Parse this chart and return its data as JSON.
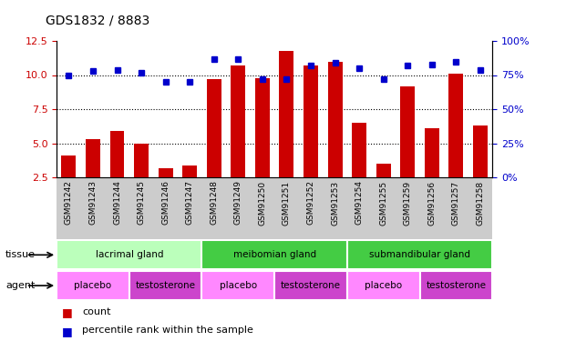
{
  "title": "GDS1832 / 8883",
  "samples": [
    "GSM91242",
    "GSM91243",
    "GSM91244",
    "GSM91245",
    "GSM91246",
    "GSM91247",
    "GSM91248",
    "GSM91249",
    "GSM91250",
    "GSM91251",
    "GSM91252",
    "GSM91253",
    "GSM91254",
    "GSM91255",
    "GSM91259",
    "GSM91256",
    "GSM91257",
    "GSM91258"
  ],
  "bar_values": [
    4.1,
    5.3,
    5.9,
    5.0,
    3.2,
    3.4,
    9.7,
    10.7,
    9.8,
    11.8,
    10.7,
    11.0,
    6.5,
    3.5,
    9.2,
    6.1,
    10.1,
    6.3
  ],
  "dot_values_pct": [
    75,
    78,
    79,
    77,
    70,
    70,
    87,
    87,
    72,
    72,
    82,
    84,
    80,
    72,
    82,
    83,
    85,
    79
  ],
  "ylim_left": [
    2.5,
    12.5
  ],
  "ylim_right": [
    0,
    100
  ],
  "yticks_left": [
    2.5,
    5.0,
    7.5,
    10.0,
    12.5
  ],
  "yticks_right": [
    0,
    25,
    50,
    75,
    100
  ],
  "bar_color": "#cc0000",
  "dot_color": "#0000cc",
  "tissue_data": [
    {
      "label": "lacrimal gland",
      "start": 0,
      "end": 6,
      "color": "#bbffbb"
    },
    {
      "label": "meibomian gland",
      "start": 6,
      "end": 12,
      "color": "#44cc44"
    },
    {
      "label": "submandibular gland",
      "start": 12,
      "end": 18,
      "color": "#44cc44"
    }
  ],
  "agent_data": [
    {
      "label": "placebo",
      "start": 0,
      "end": 3,
      "color": "#ff88ff"
    },
    {
      "label": "testosterone",
      "start": 3,
      "end": 6,
      "color": "#cc44cc"
    },
    {
      "label": "placebo",
      "start": 6,
      "end": 9,
      "color": "#ff88ff"
    },
    {
      "label": "testosterone",
      "start": 9,
      "end": 12,
      "color": "#cc44cc"
    },
    {
      "label": "placebo",
      "start": 12,
      "end": 15,
      "color": "#ff88ff"
    },
    {
      "label": "testosterone",
      "start": 15,
      "end": 18,
      "color": "#cc44cc"
    }
  ],
  "xtick_bg_color": "#cccccc",
  "tick_label_color_left": "#cc0000",
  "tick_label_color_right": "#0000cc",
  "legend_count_color": "#cc0000",
  "legend_dot_color": "#0000cc"
}
